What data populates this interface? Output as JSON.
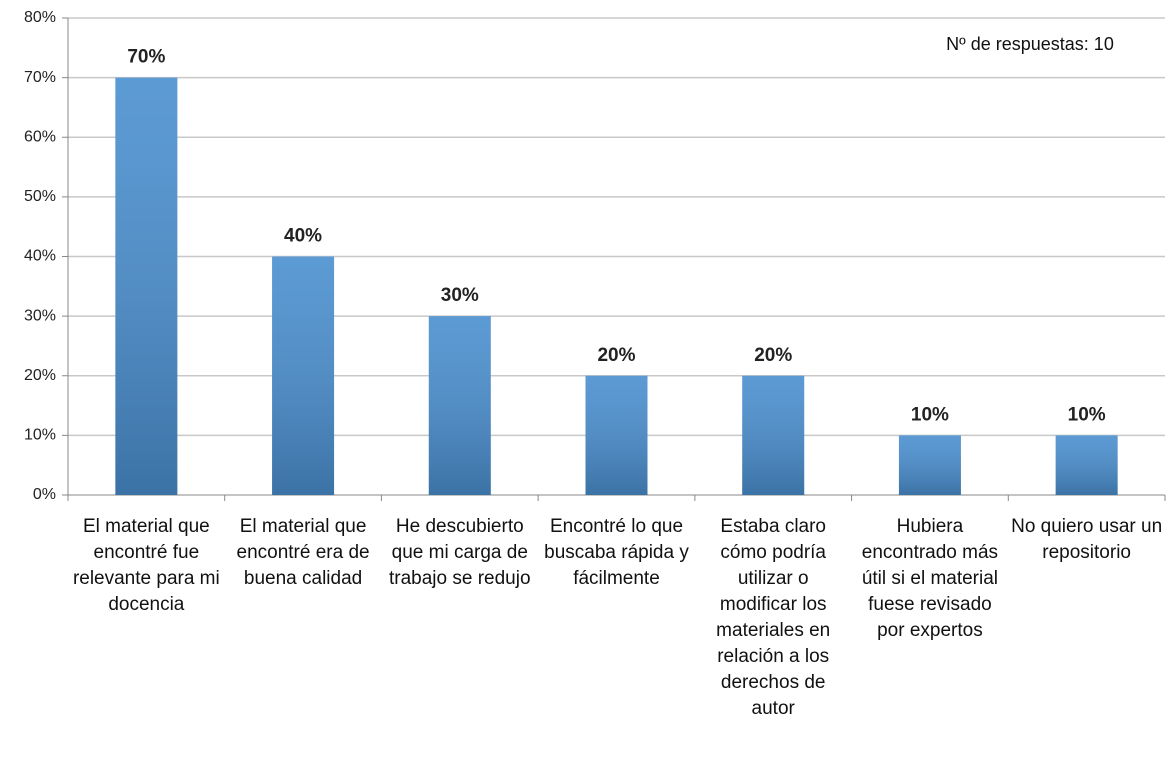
{
  "chart_data": {
    "type": "bar",
    "annotation": "Nº de respuestas: 10",
    "categories": [
      "El material que encontré fue relevante para mi docencia",
      "El material que encontré era de buena calidad",
      "He descubierto que mi carga de trabajo se redujo",
      "Encontré lo que buscaba rápida y fácilmente",
      "Estaba claro cómo podría utilizar o modificar los materiales en relación a los derechos de autor",
      "Hubiera encontrado más útil si el material fuese revisado por expertos",
      "No quiero usar un repositorio"
    ],
    "values": [
      70,
      40,
      30,
      20,
      20,
      10,
      10
    ],
    "value_labels": [
      "70%",
      "40%",
      "30%",
      "20%",
      "20%",
      "10%",
      "10%"
    ],
    "color": "#4a8fcf",
    "ylim": [
      0,
      80
    ],
    "yticks": [
      {
        "value": 0,
        "label": "0%"
      },
      {
        "value": 10,
        "label": "10%"
      },
      {
        "value": 20,
        "label": "20%"
      },
      {
        "value": 30,
        "label": "30%"
      },
      {
        "value": 40,
        "label": "40%"
      },
      {
        "value": 50,
        "label": "50%"
      },
      {
        "value": 60,
        "label": "60%"
      },
      {
        "value": 70,
        "label": "70%"
      },
      {
        "value": 80,
        "label": "80%"
      }
    ],
    "grid": true
  }
}
